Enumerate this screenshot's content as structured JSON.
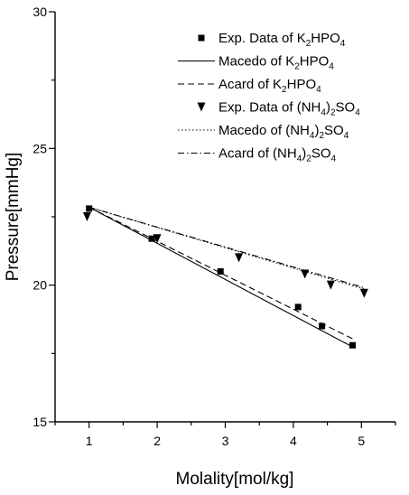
{
  "chart_data": {
    "type": "scatter",
    "title": "",
    "xlabel": "Molality[mol/kg]",
    "ylabel": "Pressure[mmHg]",
    "xlim": [
      0.5,
      5.5
    ],
    "ylim": [
      15,
      30
    ],
    "xticks": [
      "1",
      "2",
      "3",
      "4",
      "5"
    ],
    "yticks": [
      "15",
      "20",
      "25",
      "30"
    ],
    "grid": false,
    "legend_position": "top-right",
    "series": [
      {
        "name": "Exp. Data of K2HPO4",
        "kind": "points",
        "marker": "square",
        "x": [
          1.0,
          1.92,
          2.93,
          4.07,
          4.42,
          4.87
        ],
        "y": [
          22.8,
          21.7,
          20.5,
          19.2,
          18.5,
          17.8
        ]
      },
      {
        "name": "Macedo of K2HPO4",
        "kind": "line",
        "dash": "solid",
        "x": [
          1.0,
          4.9
        ],
        "y": [
          22.85,
          17.7
        ]
      },
      {
        "name": "Acard of K2HPO4",
        "kind": "line",
        "dash": "dashed",
        "x": [
          1.0,
          4.9
        ],
        "y": [
          22.85,
          18.0
        ]
      },
      {
        "name": "Exp. Data of (NH4)2SO4",
        "kind": "points",
        "marker": "triangle-down",
        "x": [
          0.97,
          2.0,
          3.2,
          4.17,
          4.55,
          5.04
        ],
        "y": [
          22.5,
          21.7,
          21.0,
          20.4,
          20.0,
          19.7
        ]
      },
      {
        "name": "Macedo of (NH4)2SO4",
        "kind": "line",
        "dash": "dotted",
        "x": [
          1.0,
          5.05
        ],
        "y": [
          22.85,
          19.85
        ]
      },
      {
        "name": "Acard of (NH4)2SO4",
        "kind": "line",
        "dash": "dashdot",
        "x": [
          1.0,
          5.05
        ],
        "y": [
          22.85,
          19.9
        ]
      }
    ]
  }
}
